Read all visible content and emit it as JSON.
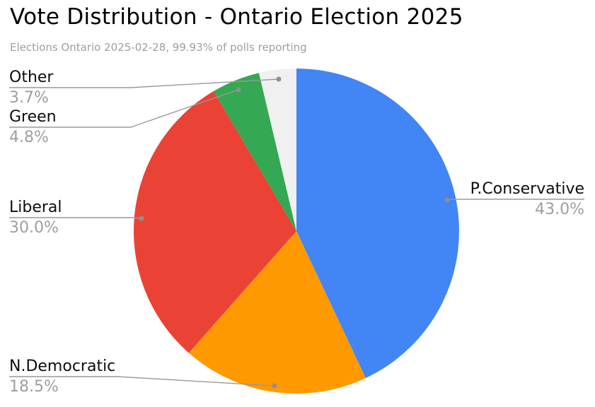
{
  "page": {
    "background_color": "#ffffff"
  },
  "chart_data": {
    "type": "pie",
    "title": "Vote Distribution - Ontario Election 2025",
    "subtitle": "Elections Ontario 2025-02-28, 99.93% of polls reporting",
    "legend_position": "none",
    "label_style": "outside-callout-with-leader-lines",
    "start_angle_deg": 0,
    "direction": "clockwise",
    "slices": [
      {
        "label": "P.Conservative",
        "value_pct": 43.0,
        "display_pct": "43.0%",
        "color": "#4285F4"
      },
      {
        "label": "N.Democratic",
        "value_pct": 18.5,
        "display_pct": "18.5%",
        "color": "#FF9900"
      },
      {
        "label": "Liberal",
        "value_pct": 30.0,
        "display_pct": "30.0%",
        "color": "#EA4335"
      },
      {
        "label": "Green",
        "value_pct": 4.8,
        "display_pct": "4.8%",
        "color": "#34A853"
      },
      {
        "label": "Other",
        "value_pct": 3.7,
        "display_pct": "3.7%",
        "color": "#F0F0F0"
      }
    ],
    "style_colors": {
      "title_text": "#000000",
      "subtitle_text": "#9e9e9e",
      "slice_label_text": "#0d0d0d",
      "percent_text": "#9e9e9e",
      "leader_line": "#999999",
      "callout_dot": "#8f8f8f"
    }
  }
}
